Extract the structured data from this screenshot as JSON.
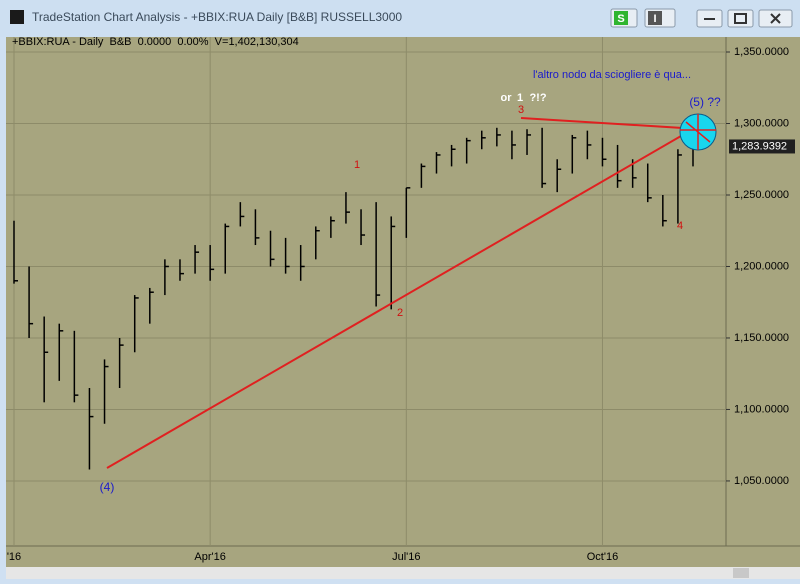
{
  "window": {
    "title": "TradeStation Chart Analysis - +BBIX:RUA Daily [B&B] RUSSELL3000",
    "button_s": "S",
    "button_i": "I"
  },
  "chart_data": {
    "type": "ohlc",
    "subtitle": "+BBIX:RUA - Daily  B&B  0.0000  0.00%  V=1,402,130,304",
    "annotations": {
      "note": "l'altro nodo da sciogliere è qua...",
      "wave5": "(5) ??",
      "wave4_major": "(4)",
      "or": "or",
      "alt1": "1",
      "alt1_q": "?!?",
      "wave1": "1",
      "wave2": "2",
      "wave3": "3",
      "wave4": "4"
    },
    "categories": [
      "'16",
      null,
      null,
      null,
      null,
      null,
      null,
      null,
      null,
      null,
      null,
      null,
      null,
      "Apr'16",
      null,
      null,
      null,
      null,
      null,
      null,
      null,
      null,
      null,
      null,
      null,
      null,
      "Jul'16",
      null,
      null,
      null,
      null,
      null,
      null,
      null,
      null,
      null,
      null,
      null,
      null,
      "Oct'16",
      null,
      null,
      null,
      null,
      null,
      null
    ],
    "high": [
      1232,
      1200,
      1165,
      1160,
      1155,
      1115,
      1135,
      1150,
      1180,
      1185,
      1205,
      1205,
      1215,
      1215,
      1230,
      1245,
      1240,
      1225,
      1220,
      1215,
      1228,
      1235,
      1252,
      1240,
      1245,
      1235,
      1255,
      1272,
      1280,
      1285,
      1290,
      1295,
      1297,
      1295,
      1296,
      1297,
      1275,
      1292,
      1295,
      1290,
      1285,
      1275,
      1272,
      1250,
      1282,
      1290
    ],
    "low": [
      1188,
      1150,
      1105,
      1120,
      1105,
      1058,
      1090,
      1115,
      1140,
      1160,
      1180,
      1190,
      1195,
      1190,
      1195,
      1228,
      1215,
      1200,
      1195,
      1190,
      1205,
      1220,
      1230,
      1215,
      1172,
      1170,
      1220,
      1255,
      1265,
      1270,
      1272,
      1282,
      1284,
      1275,
      1278,
      1255,
      1252,
      1265,
      1275,
      1270,
      1255,
      1255,
      1245,
      1228,
      1230,
      1270
    ],
    "close": [
      1190,
      1160,
      1140,
      1155,
      1110,
      1095,
      1130,
      1145,
      1178,
      1182,
      1200,
      1195,
      1210,
      1198,
      1228,
      1235,
      1220,
      1205,
      1200,
      1200,
      1225,
      1232,
      1238,
      1222,
      1180,
      1228,
      1255,
      1270,
      1278,
      1282,
      1288,
      1290,
      1292,
      1285,
      1292,
      1258,
      1268,
      1290,
      1285,
      1275,
      1260,
      1262,
      1248,
      1232,
      1278,
      1283.9392
    ],
    "color": "#000000",
    "ylim": [
      1004.5,
      1360.5
    ],
    "yticks": [
      {
        "value": 1050,
        "label": "1,050.0000"
      },
      {
        "value": 1100,
        "label": "1,100.0000"
      },
      {
        "value": 1150,
        "label": "1,150.0000"
      },
      {
        "value": 1200,
        "label": "1,200.0000"
      },
      {
        "value": 1250,
        "label": "1,250.0000"
      },
      {
        "value": 1300,
        "label": "1,300.0000"
      },
      {
        "value": 1350,
        "label": "1,350.0000"
      }
    ],
    "last_price": {
      "value": 1283.9392,
      "label": "1,283.9392"
    },
    "grid": true
  }
}
